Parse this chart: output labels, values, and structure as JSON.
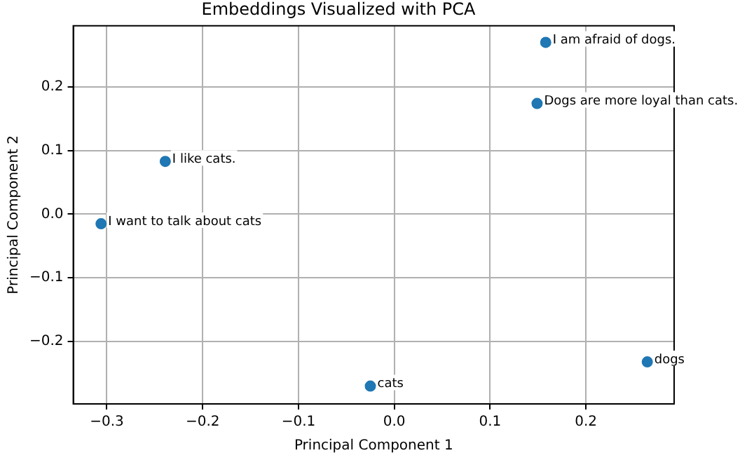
{
  "chart_data": {
    "type": "scatter",
    "title": "Embeddings Visualized with PCA",
    "xlabel": "Principal Component 1",
    "ylabel": "Principal Component 2",
    "x": [
      -0.306,
      -0.239,
      0.149,
      0.158,
      -0.025,
      0.264
    ],
    "series": [
      {
        "color": "#1f77b4",
        "values": [
          -0.015,
          0.083,
          0.174,
          0.27,
          -0.27,
          -0.232
        ]
      }
    ],
    "annotations": [
      {
        "text": "I want to talk about cats",
        "x": -0.306,
        "y": -0.015
      },
      {
        "text": "I like cats.",
        "x": -0.239,
        "y": 0.083
      },
      {
        "text": "Dogs are more loyal than cats.",
        "x": 0.149,
        "y": 0.174
      },
      {
        "text": "I am afraid of dogs.",
        "x": 0.158,
        "y": 0.27
      },
      {
        "text": "cats",
        "x": -0.025,
        "y": -0.27
      },
      {
        "text": "dogs",
        "x": 0.264,
        "y": -0.232
      }
    ],
    "xlim": [
      -0.335,
      0.292
    ],
    "xticks": [
      {
        "value": -0.3,
        "label": "−0.3"
      },
      {
        "value": -0.2,
        "label": "−0.2"
      },
      {
        "value": -0.1,
        "label": "−0.1"
      },
      {
        "value": 0,
        "label": "0.0"
      },
      {
        "value": 0.1,
        "label": "0.1"
      },
      {
        "value": 0.2,
        "label": "0.2"
      }
    ],
    "ylim": [
      -0.298,
      0.296
    ],
    "yticks": [
      {
        "value": -0.2,
        "label": "−0.2"
      },
      {
        "value": -0.1,
        "label": "−0.1"
      },
      {
        "value": 0,
        "label": "0.0"
      },
      {
        "value": 0.1,
        "label": "0.1"
      },
      {
        "value": 0.2,
        "label": "0.2"
      }
    ],
    "grid": true,
    "legend": false,
    "marker": "circle"
  }
}
